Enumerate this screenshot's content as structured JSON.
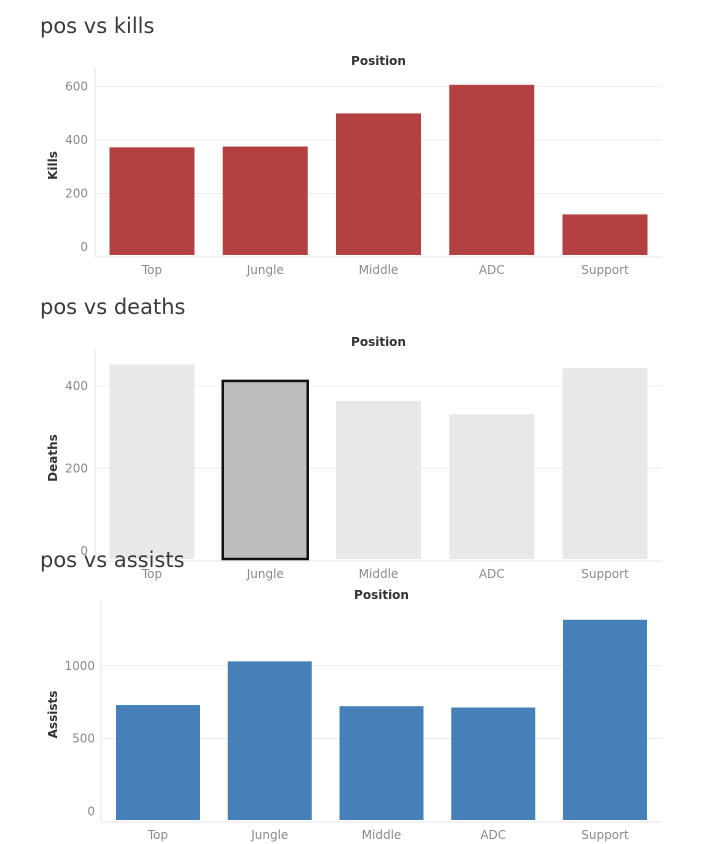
{
  "charts": [
    {
      "title": "pos vs kills",
      "chart_data": {
        "type": "bar",
        "title": "pos vs kills",
        "xlabel": "Position",
        "ylabel": "Kills",
        "categories": [
          "Top",
          "Jungle",
          "Middle",
          "ADC",
          "Support"
        ],
        "values": [
          373,
          376,
          500,
          607,
          122
        ],
        "ylim": [
          -30,
          640
        ],
        "yticks": [
          0,
          200,
          400,
          600
        ],
        "grid": true,
        "bar_color": "#b44141",
        "highlight_index": null
      }
    },
    {
      "title": "pos vs deaths",
      "chart_data": {
        "type": "bar",
        "title": "pos vs deaths",
        "xlabel": "Position",
        "ylabel": "Deaths",
        "categories": [
          "Top",
          "Jungle",
          "Middle",
          "ADC",
          "Support"
        ],
        "values": [
          452,
          412,
          364,
          331,
          443
        ],
        "ylim": [
          -20,
          470
        ],
        "yticks": [
          0,
          200,
          400
        ],
        "grid": true,
        "bar_color": "#e8e8e8",
        "highlight_color": "#bdbdbd",
        "highlight_stroke": "#111111",
        "highlight_index": 1
      }
    },
    {
      "title": "pos vs assists",
      "chart_data": {
        "type": "bar",
        "title": "pos vs assists",
        "xlabel": "Position",
        "ylabel": "Assists",
        "categories": [
          "Top",
          "Jungle",
          "Middle",
          "ADC",
          "Support"
        ],
        "values": [
          730,
          1030,
          722,
          713,
          1316
        ],
        "ylim": [
          -60,
          1390
        ],
        "yticks": [
          0,
          500,
          1000
        ],
        "grid": true,
        "bar_color": "#4580b9",
        "highlight_index": null
      }
    }
  ]
}
